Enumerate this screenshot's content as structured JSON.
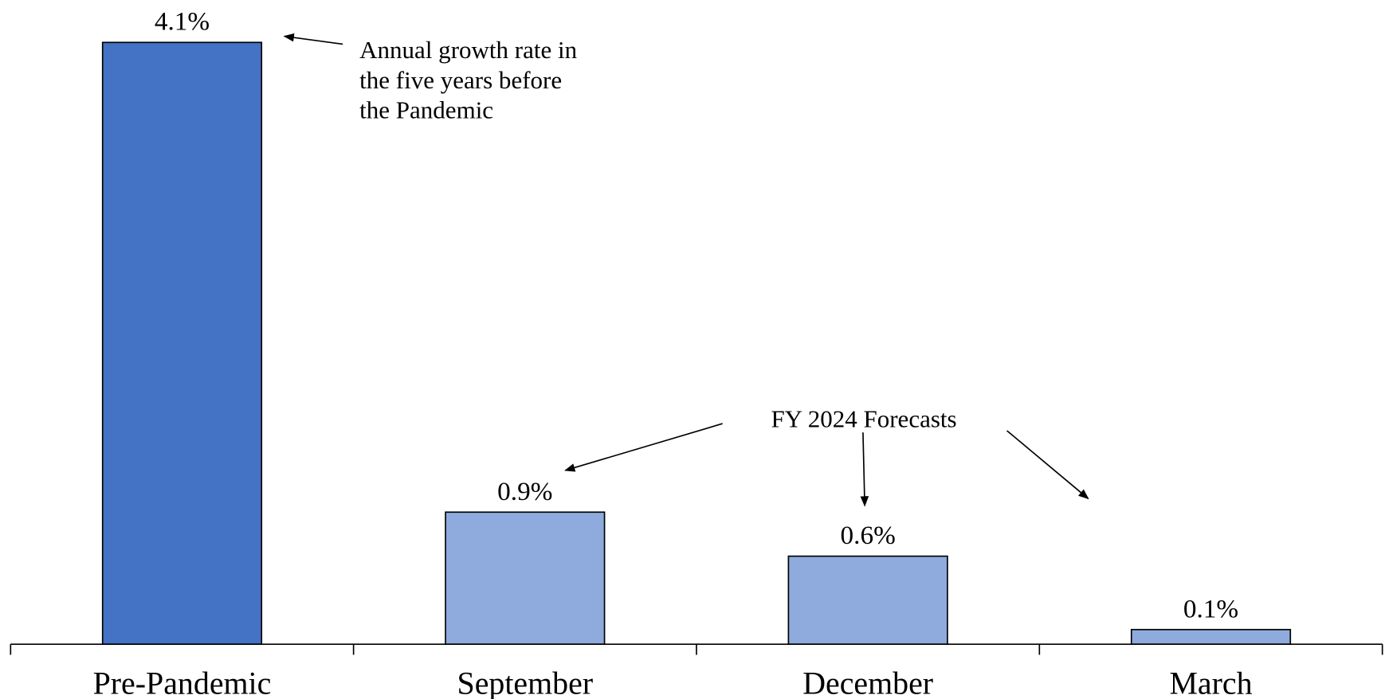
{
  "chart_data": {
    "type": "bar",
    "categories": [
      "Pre-Pandemic",
      "September",
      "December",
      "March"
    ],
    "values": [
      4.1,
      0.9,
      0.6,
      0.1
    ],
    "value_labels": [
      "4.1%",
      "0.9%",
      "0.6%",
      "0.1%"
    ],
    "colors": [
      "#4472c4",
      "#8faadc",
      "#8faadc",
      "#8faadc"
    ],
    "annotations": [
      {
        "lines": [
          "Annual growth rate in",
          "the five years before",
          "the Pandemic"
        ]
      },
      {
        "lines": [
          "FY 2024 Forecasts"
        ]
      }
    ]
  }
}
